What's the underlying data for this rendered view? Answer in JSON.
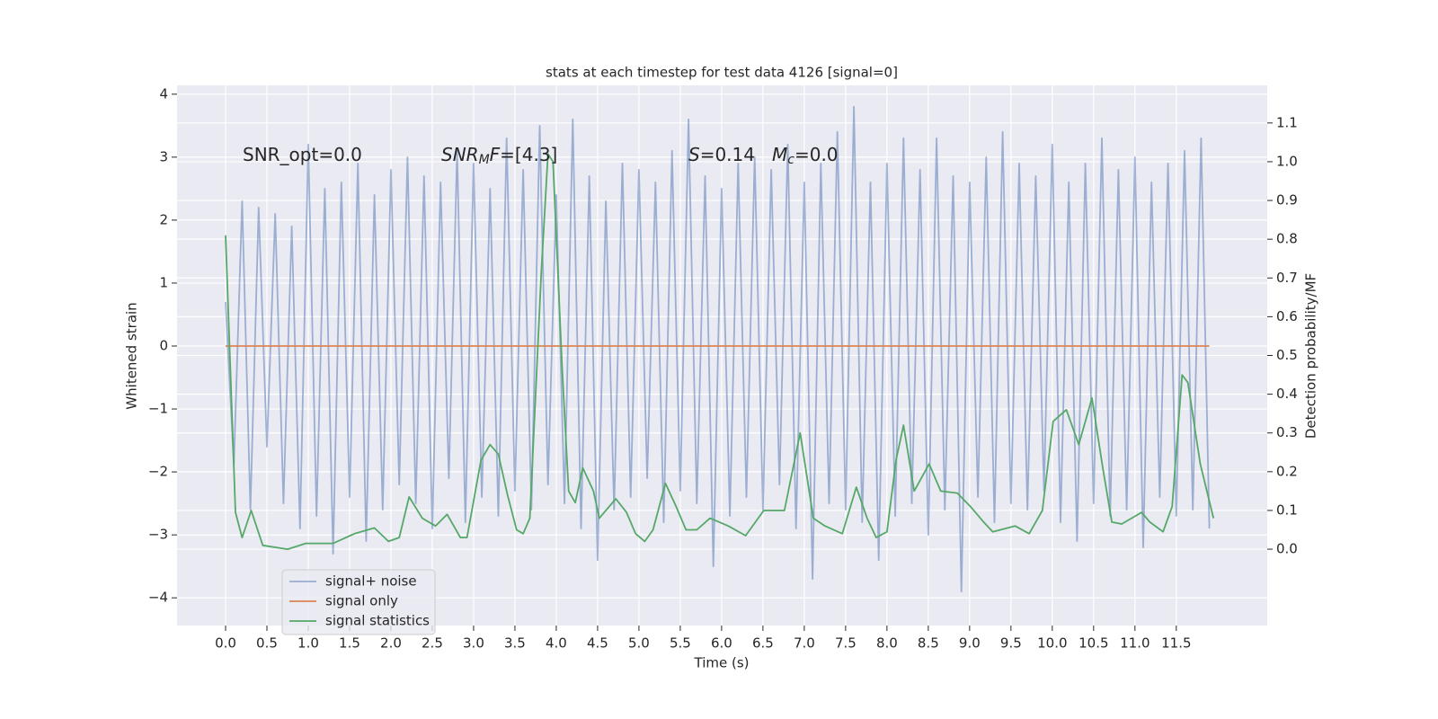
{
  "chart_data": {
    "type": "line",
    "title": "stats at each timestep for test data 4126 [signal=0]",
    "x_label": "Time (s)",
    "y_label": "Whitened strain",
    "y2_label": "Detection probability/MF",
    "xlim": [
      -0.587,
      12.6
    ],
    "ylim": [
      -4.44,
      4.14
    ],
    "y2lim": [
      -0.197,
      1.197
    ],
    "xticks": [
      {
        "value": 0,
        "label": "0.0"
      },
      0.5,
      {
        "value": 1,
        "label": "1.0"
      },
      1.5,
      {
        "value": 2,
        "label": "2.0"
      },
      2.5,
      {
        "value": 3,
        "label": "3.0"
      },
      3.5,
      {
        "value": 4,
        "label": "4.0"
      },
      4.5,
      {
        "value": 5,
        "label": "5.0"
      },
      5.5,
      {
        "value": 6,
        "label": "6.0"
      },
      6.5,
      {
        "value": 7,
        "label": "7.0"
      },
      7.5,
      {
        "value": 8,
        "label": "8.0"
      },
      8.5,
      {
        "value": 9,
        "label": "9.0"
      },
      9.5,
      {
        "value": 10,
        "label": "10.0"
      },
      10.5,
      {
        "value": 11,
        "label": "11.0"
      },
      11.5
    ],
    "yticks": [
      {
        "value": -4,
        "label": "−4"
      },
      {
        "value": -3,
        "label": "−3"
      },
      {
        "value": -2,
        "label": "−2"
      },
      {
        "value": -1,
        "label": "−1"
      },
      0,
      1,
      2,
      3,
      4
    ],
    "y2ticks": [
      {
        "value": 0,
        "label": "0.0"
      },
      0.1,
      0.2,
      0.3,
      0.4,
      0.5,
      0.6,
      0.7,
      0.8,
      0.9,
      {
        "value": 1,
        "label": "1.0"
      },
      1.1
    ],
    "grid": true,
    "legend": "lower left",
    "annotations": [
      [
        {
          "text": "SNR_opt=0.0"
        }
      ],
      [
        {
          "text": "SNR",
          "style": "italic"
        },
        {
          "text": "M",
          "style": "sub"
        },
        {
          "text": "F",
          "style": "italic"
        },
        {
          "text": "=[4.3]"
        }
      ],
      [
        {
          "text": "S",
          "style": "italic"
        },
        {
          "text": "=0.14"
        }
      ],
      [
        {
          "text": "M",
          "style": "italic"
        },
        {
          "text": "c",
          "style": "sub"
        },
        {
          "text": "=0.0"
        }
      ]
    ],
    "x": [
      0.0,
      0.1,
      0.2,
      0.3,
      0.4,
      0.5,
      0.6,
      0.7,
      0.8,
      0.9,
      1.0,
      1.1,
      1.2,
      1.3,
      1.4,
      1.5,
      1.6,
      1.7,
      1.8,
      1.9,
      2.0,
      2.1,
      2.2,
      2.3,
      2.4,
      2.5,
      2.6,
      2.7,
      2.8,
      2.9,
      3.0,
      3.1,
      3.2,
      3.3,
      3.4,
      3.5,
      3.6,
      3.7,
      3.8,
      3.9,
      4.0,
      4.1,
      4.2,
      4.3,
      4.4,
      4.5,
      4.6,
      4.7,
      4.8,
      4.9,
      5.0,
      5.1,
      5.2,
      5.3,
      5.4,
      5.5,
      5.6,
      5.7,
      5.8,
      5.9,
      6.0,
      6.1,
      6.2,
      6.3,
      6.4,
      6.5,
      6.6,
      6.7,
      6.8,
      6.9,
      7.0,
      7.1,
      7.2,
      7.3,
      7.4,
      7.5,
      7.6,
      7.7,
      7.8,
      7.9,
      8.0,
      8.1,
      8.2,
      8.3,
      8.4,
      8.5,
      8.6,
      8.7,
      8.8,
      8.9,
      9.0,
      9.1,
      9.2,
      9.3,
      9.4,
      9.5,
      9.6,
      9.7,
      9.8,
      9.9,
      10.0,
      10.1,
      10.2,
      10.3,
      10.4,
      10.5,
      10.6,
      10.7,
      10.8,
      10.9,
      11.0,
      11.1,
      11.2,
      11.3,
      11.4,
      11.5,
      11.6,
      11.7,
      11.8,
      11.9
    ],
    "series": [
      {
        "name": "signal+ noise",
        "color": "#4c72b0",
        "opacity": 0.5,
        "values": [
          0.7,
          -1.9,
          2.3,
          -2.6,
          2.2,
          -1.6,
          2.1,
          -2.5,
          1.9,
          -2.9,
          3.2,
          -2.7,
          2.5,
          -3.3,
          2.6,
          -2.4,
          2.9,
          -3.1,
          2.4,
          -2.6,
          2.8,
          -2.2,
          3.0,
          -2.5,
          2.7,
          -2.9,
          2.6,
          -2.1,
          3.1,
          -2.8,
          2.9,
          -2.4,
          2.5,
          -2.7,
          3.3,
          -2.3,
          2.8,
          -2.6,
          3.5,
          -2.2,
          2.4,
          -2.5,
          3.6,
          -2.9,
          2.7,
          -3.4,
          2.3,
          -2.6,
          2.9,
          -2.4,
          2.8,
          -2.1,
          2.6,
          -2.8,
          3.1,
          -2.3,
          3.6,
          -2.5,
          2.7,
          -3.5,
          2.5,
          -2.7,
          2.9,
          -2.4,
          3.0,
          -2.6,
          2.8,
          -2.2,
          3.2,
          -2.9,
          2.6,
          -3.7,
          2.9,
          -2.5,
          3.4,
          -2.6,
          3.8,
          -2.8,
          2.6,
          -3.4,
          2.9,
          -2.7,
          3.3,
          -2.5,
          2.8,
          -3.0,
          3.3,
          -2.6,
          2.7,
          -3.9,
          2.6,
          -2.4,
          3.0,
          -2.8,
          3.4,
          -2.5,
          2.9,
          -2.6,
          2.7,
          -2.3,
          3.2,
          -2.8,
          2.6,
          -3.1,
          2.9,
          -2.5,
          3.3,
          -2.7,
          2.8,
          -2.6,
          3.0,
          -3.2,
          2.6,
          -2.4,
          2.9,
          -2.7,
          3.1,
          -2.6,
          3.3,
          -2.9
        ]
      },
      {
        "name": "signal only",
        "color": "#dd8452",
        "opacity": 1,
        "values": [
          0,
          0,
          0,
          0,
          0,
          0,
          0,
          0,
          0,
          0,
          0,
          0,
          0,
          0,
          0,
          0,
          0,
          0,
          0,
          0,
          0,
          0,
          0,
          0,
          0,
          0,
          0,
          0,
          0,
          0,
          0,
          0,
          0,
          0,
          0,
          0,
          0,
          0,
          0,
          0,
          0,
          0,
          0,
          0,
          0,
          0,
          0,
          0,
          0,
          0,
          0,
          0,
          0,
          0,
          0,
          0,
          0,
          0,
          0,
          0,
          0,
          0,
          0,
          0,
          0,
          0,
          0,
          0,
          0,
          0,
          0,
          0,
          0,
          0,
          0,
          0,
          0,
          0,
          0,
          0,
          0,
          0,
          0,
          0,
          0,
          0,
          0,
          0,
          0,
          0,
          0,
          0,
          0,
          0,
          0,
          0,
          0,
          0,
          0,
          0,
          0,
          0,
          0,
          0,
          0,
          0,
          0,
          0,
          0,
          0,
          0,
          0,
          0,
          0,
          0,
          0,
          0,
          0,
          0,
          0
        ]
      },
      {
        "name": "signal statistics",
        "color": "#55a868",
        "opacity": 1,
        "axis": "y2",
        "x": [
          0.0,
          0.12,
          0.2,
          0.31,
          0.45,
          0.75,
          0.97,
          1.3,
          1.56,
          1.8,
          1.97,
          2.1,
          2.22,
          2.38,
          2.54,
          2.68,
          2.84,
          2.92,
          3.09,
          3.2,
          3.3,
          3.41,
          3.52,
          3.6,
          3.68,
          3.82,
          3.9,
          3.96,
          4.07,
          4.15,
          4.23,
          4.32,
          4.45,
          4.52,
          4.72,
          4.85,
          4.96,
          5.07,
          5.17,
          5.32,
          5.45,
          5.57,
          5.7,
          5.86,
          6.08,
          6.29,
          6.51,
          6.64,
          6.76,
          6.95,
          7.11,
          7.25,
          7.46,
          7.63,
          7.76,
          7.87,
          8.0,
          8.11,
          8.2,
          8.33,
          8.51,
          8.65,
          8.85,
          9.01,
          9.17,
          9.28,
          9.55,
          9.72,
          9.88,
          10.01,
          10.17,
          10.32,
          10.48,
          10.61,
          10.72,
          10.84,
          11.08,
          11.18,
          11.34,
          11.45,
          11.57,
          11.64,
          11.79,
          11.95
        ],
        "values": [
          0.81,
          0.095,
          0.03,
          0.1,
          0.01,
          0.0,
          0.015,
          0.015,
          0.04,
          0.055,
          0.02,
          0.03,
          0.135,
          0.08,
          0.06,
          0.09,
          0.03,
          0.03,
          0.23,
          0.27,
          0.245,
          0.14,
          0.05,
          0.04,
          0.08,
          0.72,
          1.02,
          1.0,
          0.47,
          0.15,
          0.12,
          0.21,
          0.15,
          0.08,
          0.13,
          0.095,
          0.04,
          0.02,
          0.05,
          0.17,
          0.11,
          0.05,
          0.05,
          0.08,
          0.06,
          0.035,
          0.1,
          0.1,
          0.1,
          0.3,
          0.08,
          0.06,
          0.04,
          0.16,
          0.08,
          0.03,
          0.045,
          0.23,
          0.32,
          0.15,
          0.22,
          0.15,
          0.145,
          0.11,
          0.07,
          0.045,
          0.06,
          0.04,
          0.1,
          0.33,
          0.36,
          0.27,
          0.39,
          0.21,
          0.07,
          0.065,
          0.095,
          0.07,
          0.045,
          0.11,
          0.45,
          0.43,
          0.22,
          0.08
        ]
      }
    ]
  }
}
